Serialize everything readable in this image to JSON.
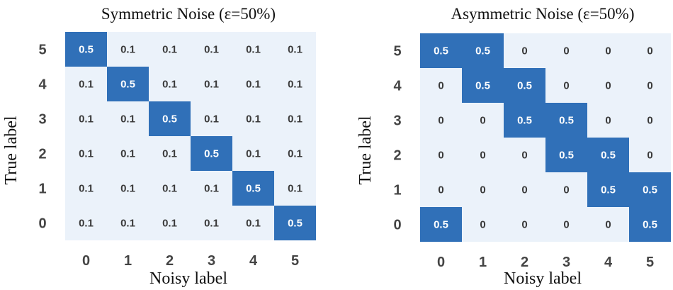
{
  "chart_data": [
    {
      "type": "heatmap",
      "title": "Symmetric Noise (ε=50%)",
      "xlabel": "Noisy label",
      "ylabel": "True label",
      "x_categories": [
        "0",
        "1",
        "2",
        "3",
        "4",
        "5"
      ],
      "y_categories": [
        "5",
        "4",
        "3",
        "2",
        "1",
        "0"
      ],
      "values": [
        [
          "0.5",
          "0.1",
          "0.1",
          "0.1",
          "0.1",
          "0.1"
        ],
        [
          "0.1",
          "0.5",
          "0.1",
          "0.1",
          "0.1",
          "0.1"
        ],
        [
          "0.1",
          "0.1",
          "0.5",
          "0.1",
          "0.1",
          "0.1"
        ],
        [
          "0.1",
          "0.1",
          "0.1",
          "0.5",
          "0.1",
          "0.1"
        ],
        [
          "0.1",
          "0.1",
          "0.1",
          "0.1",
          "0.5",
          "0.1"
        ],
        [
          "0.1",
          "0.1",
          "0.1",
          "0.1",
          "0.1",
          "0.5"
        ]
      ],
      "colors": {
        "high": "#3070b8",
        "low": "#ebf2fa",
        "text_high": "#ffffff",
        "text_low": "#3a3a3a"
      }
    },
    {
      "type": "heatmap",
      "title": "Asymmetric Noise (ε=50%)",
      "xlabel": "Noisy label",
      "ylabel": "True label",
      "x_categories": [
        "0",
        "1",
        "2",
        "3",
        "4",
        "5"
      ],
      "y_categories": [
        "5",
        "4",
        "3",
        "2",
        "1",
        "0"
      ],
      "values": [
        [
          "0.5",
          "0.5",
          "0",
          "0",
          "0",
          "0"
        ],
        [
          "0",
          "0.5",
          "0.5",
          "0",
          "0",
          "0"
        ],
        [
          "0",
          "0",
          "0.5",
          "0.5",
          "0",
          "0"
        ],
        [
          "0",
          "0",
          "0",
          "0.5",
          "0.5",
          "0"
        ],
        [
          "0",
          "0",
          "0",
          "0",
          "0.5",
          "0.5"
        ],
        [
          "0.5",
          "0",
          "0",
          "0",
          "0",
          "0.5"
        ]
      ],
      "colors": {
        "high": "#3070b8",
        "low": "#ebf2fa",
        "text_high": "#ffffff",
        "text_low": "#3a3a3a"
      }
    }
  ]
}
